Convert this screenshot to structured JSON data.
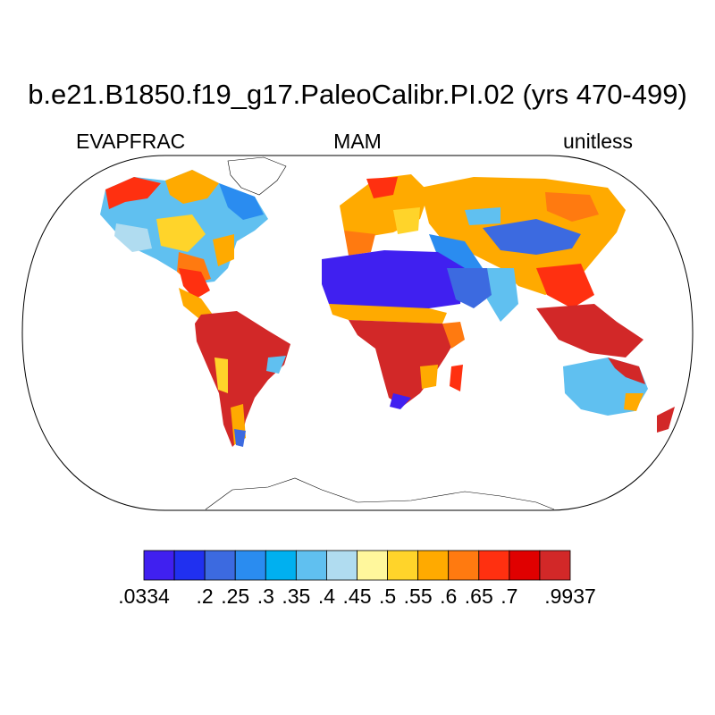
{
  "title": "b.e21.B1850.f19_g17.PaleoCalibr.PI.02 (yrs 470-499)",
  "subtitle": {
    "left": "EVAPFRAC",
    "center": "MAM",
    "right": "unitless"
  },
  "colorbar": {
    "colors": [
      "#4020f0",
      "#2030f0",
      "#3c6ae0",
      "#2a8cf0",
      "#00b0f0",
      "#60c0f0",
      "#b0dcf0",
      "#fff79c",
      "#ffd42a",
      "#ffaa00",
      "#ff7a10",
      "#ff3010",
      "#e00000",
      "#d22828"
    ],
    "labels": [
      ".0334",
      ".2",
      ".25",
      ".3",
      ".35",
      ".4",
      ".45",
      ".5",
      ".55",
      ".6",
      ".65",
      ".7",
      ".9937"
    ]
  },
  "map": {
    "projection": "Robinson",
    "ocean_color": "#ffffff",
    "coastline_color": "#000000"
  }
}
